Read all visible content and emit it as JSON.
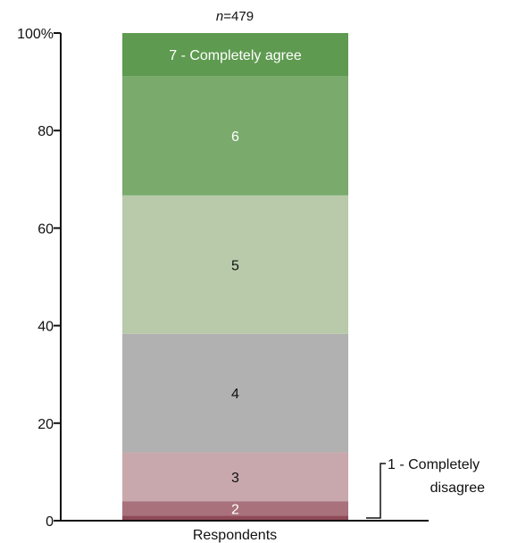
{
  "chart_data": {
    "type": "bar",
    "stacked": true,
    "categories": [
      "Respondents"
    ],
    "n_label": {
      "italic": "n",
      "rest": "=479"
    },
    "xlabel": "Respondents",
    "ylabel": "",
    "ylim": [
      0,
      100
    ],
    "y_ticks": [
      {
        "value": 0,
        "label": "0"
      },
      {
        "value": 20,
        "label": "20"
      },
      {
        "value": 40,
        "label": "40"
      },
      {
        "value": 60,
        "label": "60"
      },
      {
        "value": 80,
        "label": "80"
      },
      {
        "value": 100,
        "label": "100%"
      }
    ],
    "series": [
      {
        "name": "1 - Completely disagree",
        "value": 1.0,
        "color": "#8f4a56",
        "label": "",
        "label_color": "#ffffff"
      },
      {
        "name": "2",
        "value": 3.0,
        "color": "#a8717b",
        "label": "2",
        "label_color": "#ffffff"
      },
      {
        "name": "3",
        "value": 10.0,
        "color": "#c9a8ad",
        "label": "3",
        "label_color": "#111111"
      },
      {
        "name": "4",
        "value": 24.3,
        "color": "#b1b1b1",
        "label": "4",
        "label_color": "#111111"
      },
      {
        "name": "5",
        "value": 28.4,
        "color": "#b8caaa",
        "label": "5",
        "label_color": "#111111"
      },
      {
        "name": "6",
        "value": 24.5,
        "color": "#7aaa6c",
        "label": "6",
        "label_color": "#ffffff"
      },
      {
        "name": "7 - Completely agree",
        "value": 8.8,
        "color": "#5e9a50",
        "label": "7 - Completely agree",
        "label_color": "#ffffff"
      }
    ],
    "callout": {
      "line1": "1 - Completely",
      "line2": "disagree"
    },
    "grid": false,
    "legend": "none"
  }
}
